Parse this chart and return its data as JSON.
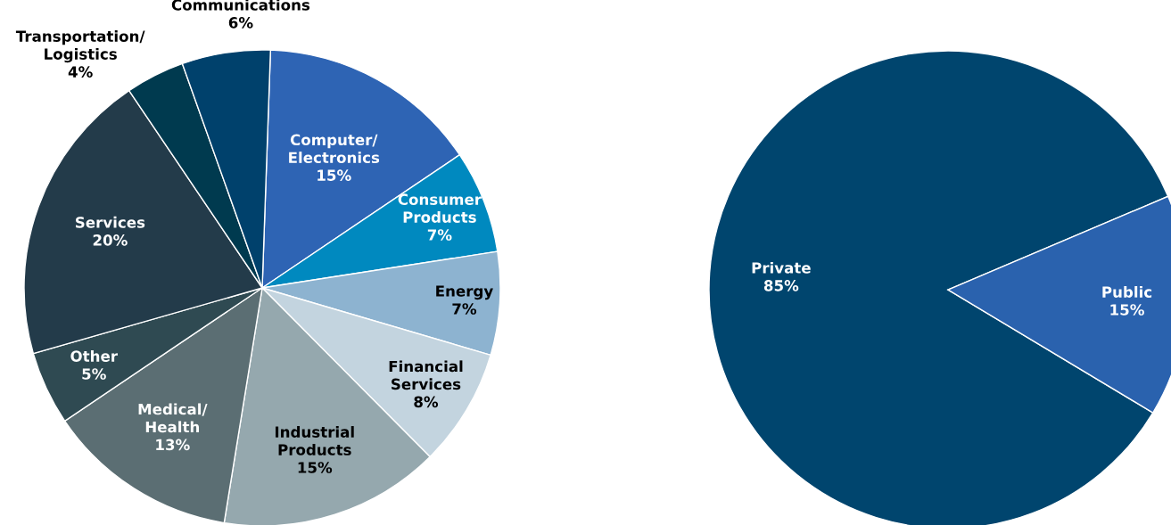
{
  "chart_data": [
    {
      "type": "pie",
      "categories": [
        "Computer/\nElectronics",
        "Consumer\nProducts",
        "Energy",
        "Financial\nServices",
        "Industrial\nProducts",
        "Medical/\nHealth",
        "Other",
        "Services",
        "Transportation/\nLogistics",
        "Communications"
      ],
      "values": [
        15,
        7,
        7,
        8,
        15,
        13,
        5,
        20,
        4,
        6
      ],
      "colors": [
        "#2e64b4",
        "#0089bf",
        "#8db3d0",
        "#c3d4df",
        "#95a8ae",
        "#5b6e73",
        "#2f4a52",
        "#233b4a",
        "#003a4f",
        "#00416c"
      ],
      "value_labels": [
        "15%",
        "7%",
        "7%",
        "8%",
        "15%",
        "13%",
        "5%",
        "20%",
        "4%",
        "6%"
      ]
    },
    {
      "type": "pie",
      "categories": [
        "Private",
        "Public"
      ],
      "values": [
        85,
        15
      ],
      "colors": [
        "#00456e",
        "#2a62ae"
      ],
      "value_labels": [
        "85%",
        "15%"
      ]
    }
  ]
}
